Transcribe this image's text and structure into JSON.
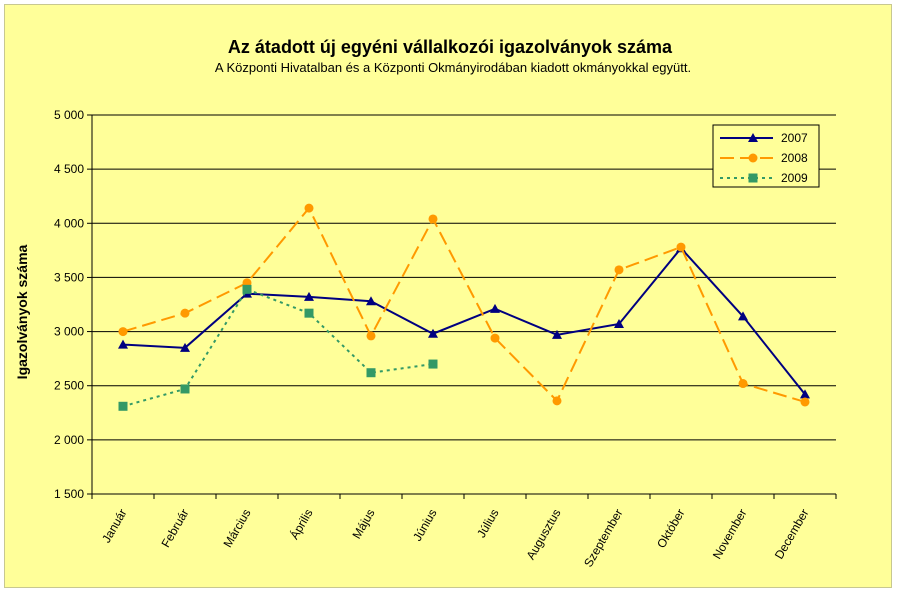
{
  "chart_data": {
    "type": "line",
    "title": "Az átadott új egyéni vállalkozói  igazolványok száma",
    "subtitle": "A Központi Hivatalban és a Központi Okmányirodában kiadott okmányokkal együtt.",
    "xlabel": "",
    "ylabel": "Igazolványok száma",
    "ylim": [
      1500,
      5000
    ],
    "yticks": [
      1500,
      2000,
      2500,
      3000,
      3500,
      4000,
      4500,
      5000
    ],
    "ytick_labels": [
      "1 500",
      "2 000",
      "2 500",
      "3 000",
      "3 500",
      "4 000",
      "4 500",
      "5 000"
    ],
    "grid": true,
    "legend_position": "top-right",
    "categories": [
      "Január",
      "Február",
      "Március",
      "Április",
      "Május",
      "Június",
      "Július",
      "Augusztus",
      "Szeptember",
      "Október",
      "November",
      "December"
    ],
    "series": [
      {
        "name": "2007",
        "color": "#000080",
        "dash": "solid",
        "marker": "triangle",
        "values": [
          2880,
          2850,
          3350,
          3320,
          3280,
          2980,
          3210,
          2970,
          3070,
          3770,
          3140,
          2420
        ]
      },
      {
        "name": "2008",
        "color": "#ff9900",
        "dash": "long-dash",
        "marker": "circle",
        "values": [
          3000,
          3170,
          3450,
          4140,
          2960,
          4040,
          2940,
          2360,
          3570,
          3780,
          2520,
          2350
        ]
      },
      {
        "name": "2009",
        "color": "#339966",
        "dash": "dotted",
        "marker": "square",
        "values": [
          2310,
          2470,
          3390,
          3170,
          2620,
          2700,
          null,
          null,
          null,
          null,
          null,
          null
        ]
      }
    ]
  }
}
